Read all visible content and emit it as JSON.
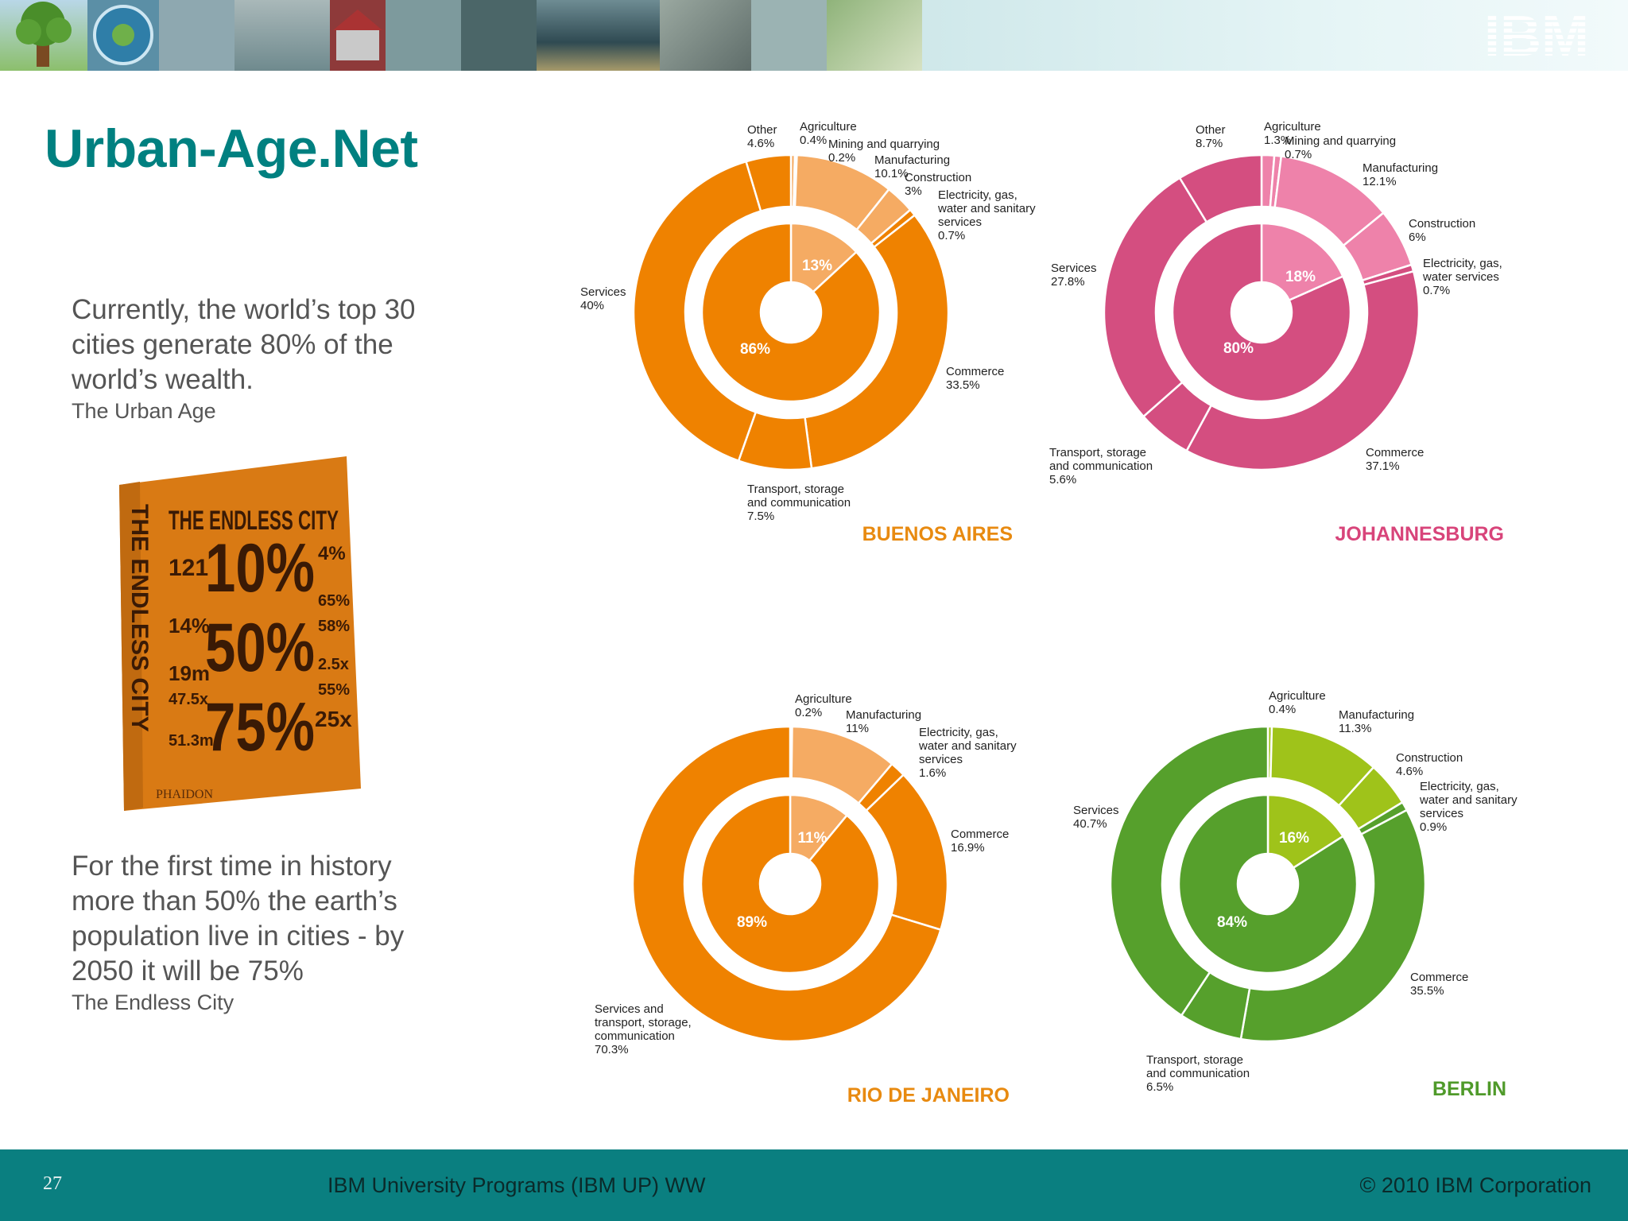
{
  "slide": {
    "title": "Urban-Age.Net",
    "paragraph1": "Currently, the world’s top 30 cities generate 80% of the world’s wealth.",
    "source1": "The Urban Age",
    "paragraph2": "For the first time in history more than 50% the earth’s population live in cities - by 2050 it will be 75%",
    "source2": "The Endless City",
    "logo_text": "IBM"
  },
  "book": {
    "title": "THE ENDLESS CITY",
    "spine": "THE ENDLESS CITY",
    "big_numbers": [
      "10%",
      "50%",
      "75%"
    ],
    "left_numbers": [
      "121",
      "14%",
      "19m",
      "47.5x",
      "51.3m"
    ],
    "right_numbers": [
      "4%",
      "65%",
      "58%",
      "2.5x",
      "55%",
      "25x"
    ],
    "publisher": "PHAIDON",
    "cover_color": "#e8891d"
  },
  "footer": {
    "page": "27",
    "center": "IBM University Programs (IBM UP) WW",
    "right": "© 2010 IBM Corporation"
  },
  "chart_data": [
    {
      "type": "pie",
      "title": "BUENOS AIRES",
      "outer": [
        {
          "label": "Agriculture 0.4%",
          "value": 0.4
        },
        {
          "label": "Mining and quarrying 0.2%",
          "value": 0.2
        },
        {
          "label": "Manufacturing 10.1%",
          "value": 10.1
        },
        {
          "label": "Construction 3%",
          "value": 3
        },
        {
          "label": "Electricity, gas, water and sanitary services 0.7%",
          "value": 0.7
        },
        {
          "label": "Commerce 33.5%",
          "value": 33.5
        },
        {
          "label": "Transport, storage and communication 7.5%",
          "value": 7.5
        },
        {
          "label": "Services 40%",
          "value": 40
        },
        {
          "label": "Other 4.6%",
          "value": 4.6
        }
      ],
      "inner": [
        {
          "label": "13%",
          "value": 13
        },
        {
          "label": "86%",
          "value": 86
        }
      ],
      "colors": {
        "main": "#ef8200",
        "light": "#f5ab63",
        "label": "#e88a10"
      }
    },
    {
      "type": "pie",
      "title": "JOHANNESBURG",
      "outer": [
        {
          "label": "Agriculture 1.3%",
          "value": 1.3
        },
        {
          "label": "Mining and quarrying 0.7%",
          "value": 0.7
        },
        {
          "label": "Manufacturing 12.1%",
          "value": 12.1
        },
        {
          "label": "Construction 6%",
          "value": 6
        },
        {
          "label": "Electricity, gas, water services 0.7%",
          "value": 0.7
        },
        {
          "label": "Commerce 37.1%",
          "value": 37.1
        },
        {
          "label": "Transport, storage and communication 5.6%",
          "value": 5.6
        },
        {
          "label": "Services 27.8%",
          "value": 27.8
        },
        {
          "label": "Other 8.7%",
          "value": 8.7
        }
      ],
      "inner": [
        {
          "label": "18%",
          "value": 18
        },
        {
          "label": "80%",
          "value": 80
        }
      ],
      "colors": {
        "main": "#d44e80",
        "light": "#ee82aa",
        "label": "#d8447a"
      }
    },
    {
      "type": "pie",
      "title": "RIO DE JANEIRO",
      "outer": [
        {
          "label": "Agriculture 0.2%",
          "value": 0.2
        },
        {
          "label": "Manufacturing 11%",
          "value": 11
        },
        {
          "label": "Electricity, gas, water and sanitary services 1.6%",
          "value": 1.6
        },
        {
          "label": "Commerce 16.9%",
          "value": 16.9
        },
        {
          "label": "Services and transport, storage, communication 70.3%",
          "value": 70.3
        }
      ],
      "inner": [
        {
          "label": "11%",
          "value": 11
        },
        {
          "label": "89%",
          "value": 89
        }
      ],
      "colors": {
        "main": "#ef8200",
        "light": "#f5ab63",
        "label": "#e88a10"
      }
    },
    {
      "type": "pie",
      "title": "BERLIN",
      "outer": [
        {
          "label": "Agriculture 0.4%",
          "value": 0.4
        },
        {
          "label": "Manufacturing 11.3%",
          "value": 11.3
        },
        {
          "label": "Construction 4.6%",
          "value": 4.6
        },
        {
          "label": "Electricity, gas, water and sanitary services 0.9%",
          "value": 0.9
        },
        {
          "label": "Commerce 35.5%",
          "value": 35.5
        },
        {
          "label": "Transport, storage and communication 6.5%",
          "value": 6.5
        },
        {
          "label": "Services 40.7%",
          "value": 40.7
        }
      ],
      "inner": [
        {
          "label": "16%",
          "value": 16
        },
        {
          "label": "84%",
          "value": 84
        }
      ],
      "colors": {
        "main": "#56a02c",
        "light": "#9fc31a",
        "label": "#4f9a2a"
      }
    }
  ]
}
